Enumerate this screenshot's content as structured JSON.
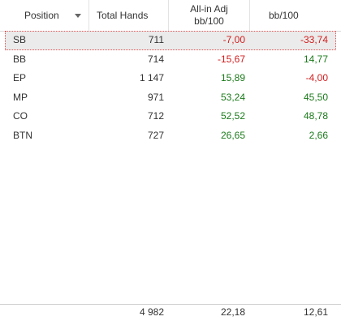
{
  "columns": {
    "position": "Position",
    "total_hands": "Total Hands",
    "allin_adj_line1": "All-in Adj",
    "allin_adj_line2": "bb/100",
    "bb100": "bb/100"
  },
  "icons": {
    "sort": "sort-descending-icon"
  },
  "colors": {
    "negative": "#d21e1e",
    "positive": "#1b7a1b",
    "selection_border": "#e05555"
  },
  "rows": [
    {
      "position": "SB",
      "total_hands": "711",
      "allin_adj": "-7,00",
      "bb100": "-33,74"
    },
    {
      "position": "BB",
      "total_hands": "714",
      "allin_adj": "-15,67",
      "bb100": "14,77"
    },
    {
      "position": "EP",
      "total_hands": "1 147",
      "allin_adj": "15,89",
      "bb100": "-4,00"
    },
    {
      "position": "MP",
      "total_hands": "971",
      "allin_adj": "53,24",
      "bb100": "45,50"
    },
    {
      "position": "CO",
      "total_hands": "712",
      "allin_adj": "52,52",
      "bb100": "48,78"
    },
    {
      "position": "BTN",
      "total_hands": "727",
      "allin_adj": "26,65",
      "bb100": "2,66"
    }
  ],
  "totals": {
    "total_hands": "4 982",
    "allin_adj": "22,18",
    "bb100": "12,61"
  }
}
